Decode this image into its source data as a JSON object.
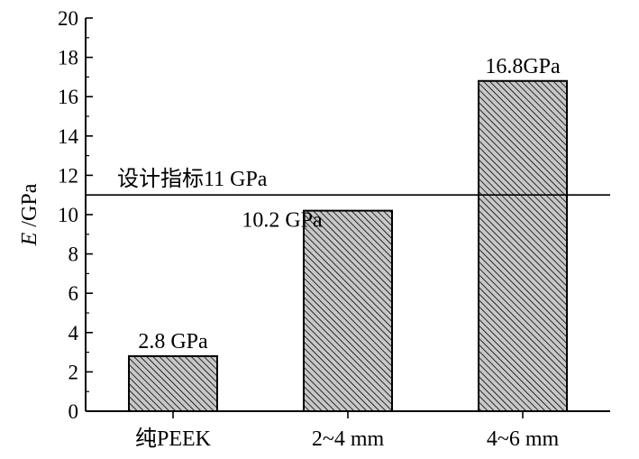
{
  "chart_data": {
    "type": "bar",
    "categories": [
      "纯PEEK",
      "2~4 mm",
      "4~6 mm"
    ],
    "values": [
      2.8,
      10.2,
      16.8
    ],
    "data_labels": [
      "2.8 GPa",
      "10.2 GPa",
      "16.8GPa"
    ],
    "ylabel_italic": "E",
    "ylabel_unit": " /GPa",
    "ylim": [
      0,
      20
    ],
    "yticks": [
      0,
      2,
      4,
      6,
      8,
      10,
      12,
      14,
      16,
      18,
      20
    ],
    "reference_line": {
      "value": 11,
      "label": "设计指标11 GPa"
    },
    "bar_fill": "#c8c8c8",
    "hatch_color": "#000000",
    "grid": false
  }
}
